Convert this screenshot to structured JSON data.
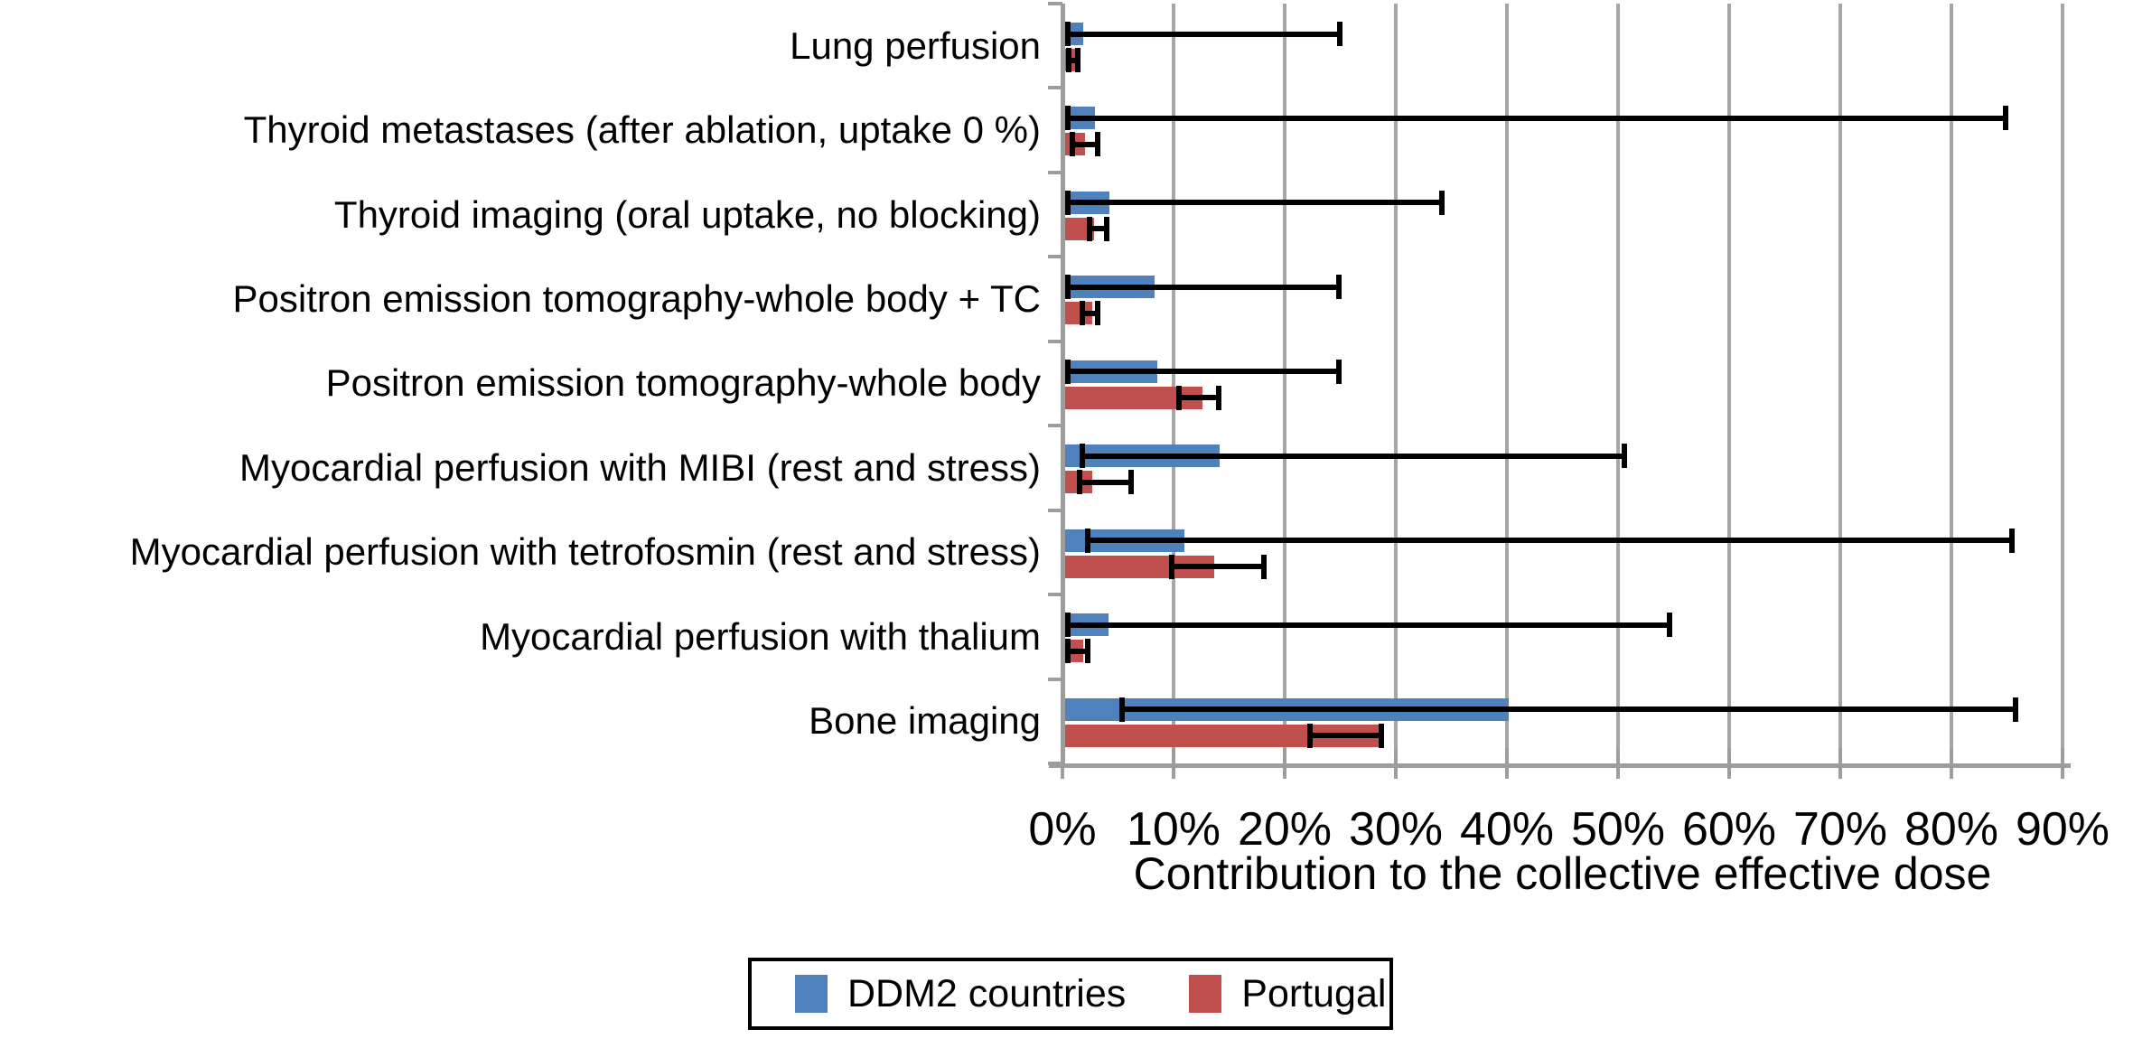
{
  "chart_data": {
    "type": "bar",
    "orientation": "horizontal",
    "title": "",
    "xlabel": "Contribution to the collective effective dose",
    "ylabel": "",
    "x_axis": {
      "min": 0,
      "max": 90,
      "tick_step": 10,
      "unit": "percent",
      "tick_labels": [
        "0%",
        "10%",
        "20%",
        "30%",
        "40%",
        "50%",
        "60%",
        "70%",
        "80%",
        "90%"
      ]
    },
    "grid": true,
    "legend_position": "bottom",
    "categories": [
      "Lung perfusion",
      "Thyroid metastases (after ablation, uptake 0 %)",
      "Thyroid imaging (oral uptake, no blocking)",
      "Positron emission tomography-whole body + TC",
      "Positron emission tomography-whole body",
      "Myocardial perfusion with MIBI (rest and stress)",
      "Myocardial perfusion with tetrofosmin (rest and stress)",
      "Myocardial perfusion with thalium",
      "Bone imaging"
    ],
    "series": [
      {
        "name": "DDM2 countries",
        "color": "#4F81BD",
        "values": [
          1.7,
          2.8,
          4.1,
          8.1,
          8.4,
          14.0,
          10.8,
          4.0,
          40.0
        ],
        "error_low": [
          0.3,
          0.3,
          0.3,
          0.3,
          0.3,
          1.6,
          2.1,
          0.3,
          5.2
        ],
        "error_high": [
          24.8,
          84.7,
          34.0,
          24.7,
          24.7,
          50.4,
          85.3,
          54.5,
          85.6
        ]
      },
      {
        "name": "Portugal",
        "color": "#C0504D",
        "values": [
          1.0,
          1.9,
          2.7,
          2.5,
          12.4,
          2.5,
          13.5,
          1.7,
          28.3
        ],
        "error_low": [
          0.4,
          0.7,
          2.3,
          1.6,
          10.3,
          1.4,
          9.7,
          0.3,
          22.1
        ],
        "error_high": [
          1.2,
          3.0,
          3.8,
          3.0,
          13.9,
          6.0,
          18.0,
          2.1,
          28.5
        ]
      }
    ],
    "colors": {
      "gridline": "#A6A6A6",
      "axis_line": "#9D9D9D",
      "error_bar": "#000000",
      "text": "#000000",
      "legend_border": "#000000",
      "background": "#FFFFFF"
    }
  }
}
